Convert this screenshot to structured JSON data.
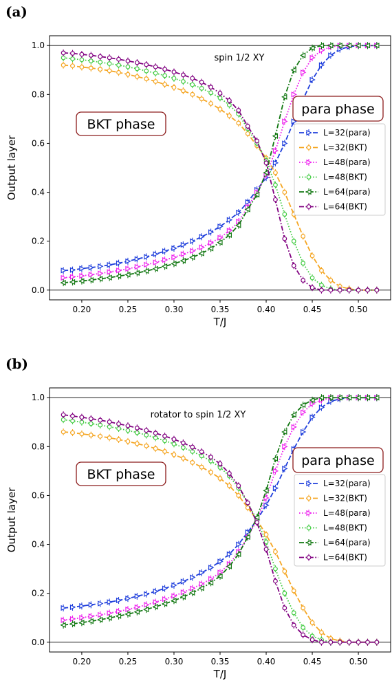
{
  "chart_data": [
    {
      "type": "line",
      "panel_label": "(a)",
      "annotation": "spin 1/2 XY",
      "phase_labels": {
        "left": "BKT phase",
        "right": "para phase"
      },
      "xlabel": "T/J",
      "ylabel": "Output layer",
      "xlim": [
        0.165,
        0.535
      ],
      "ylim": [
        -0.04,
        1.04
      ],
      "xticks": [
        0.2,
        0.25,
        0.3,
        0.35,
        0.4,
        0.45,
        0.5
      ],
      "yticks": [
        0.0,
        0.2,
        0.4,
        0.6,
        0.8,
        1.0
      ],
      "hlines": [
        0.0,
        1.0
      ],
      "legend_position": "right",
      "x": [
        0.18,
        0.19,
        0.2,
        0.21,
        0.22,
        0.23,
        0.24,
        0.25,
        0.26,
        0.27,
        0.28,
        0.29,
        0.3,
        0.31,
        0.32,
        0.33,
        0.34,
        0.35,
        0.36,
        0.37,
        0.38,
        0.39,
        0.4,
        0.41,
        0.42,
        0.43,
        0.44,
        0.45,
        0.46,
        0.47,
        0.48,
        0.49,
        0.5,
        0.51,
        0.52
      ],
      "series": [
        {
          "name": "L=32(para)",
          "color": "#1f3fdc",
          "dash": "dashed",
          "marker": "triangle-right",
          "values": [
            0.08,
            0.082,
            0.088,
            0.092,
            0.097,
            0.103,
            0.11,
            0.118,
            0.127,
            0.136,
            0.147,
            0.159,
            0.171,
            0.185,
            0.2,
            0.218,
            0.237,
            0.26,
            0.287,
            0.317,
            0.36,
            0.41,
            0.46,
            0.52,
            0.6,
            0.69,
            0.78,
            0.86,
            0.92,
            0.96,
            0.985,
            0.995,
            1.0,
            1.0,
            1.0
          ]
        },
        {
          "name": "L=32(BKT)",
          "color": "#f5a623",
          "dash": "dashed",
          "marker": "circle",
          "values": [
            0.92,
            0.917,
            0.912,
            0.908,
            0.903,
            0.897,
            0.89,
            0.882,
            0.873,
            0.864,
            0.853,
            0.841,
            0.829,
            0.815,
            0.8,
            0.782,
            0.763,
            0.74,
            0.713,
            0.683,
            0.64,
            0.59,
            0.54,
            0.48,
            0.4,
            0.31,
            0.22,
            0.14,
            0.08,
            0.04,
            0.015,
            0.005,
            0.0,
            0.0,
            0.0
          ]
        },
        {
          "name": "L=48(para)",
          "color": "#ee22ee",
          "dash": "dotted",
          "marker": "triangle-right",
          "values": [
            0.05,
            0.054,
            0.058,
            0.063,
            0.068,
            0.074,
            0.08,
            0.087,
            0.095,
            0.104,
            0.113,
            0.123,
            0.134,
            0.147,
            0.16,
            0.175,
            0.193,
            0.214,
            0.243,
            0.28,
            0.34,
            0.4,
            0.47,
            0.57,
            0.69,
            0.8,
            0.89,
            0.95,
            0.98,
            0.995,
            1.0,
            1.0,
            1.0,
            1.0,
            1.0
          ]
        },
        {
          "name": "L=48(BKT)",
          "color": "#44cc44",
          "dash": "dotted",
          "marker": "circle",
          "values": [
            0.95,
            0.946,
            0.942,
            0.937,
            0.932,
            0.926,
            0.92,
            0.913,
            0.905,
            0.896,
            0.887,
            0.877,
            0.866,
            0.853,
            0.84,
            0.825,
            0.807,
            0.786,
            0.757,
            0.72,
            0.66,
            0.6,
            0.53,
            0.43,
            0.31,
            0.2,
            0.11,
            0.05,
            0.02,
            0.005,
            0.0,
            0.0,
            0.0,
            0.0,
            0.0
          ]
        },
        {
          "name": "L=64(para)",
          "color": "#117711",
          "dash": "dashdot",
          "marker": "triangle-left",
          "values": [
            0.03,
            0.033,
            0.037,
            0.041,
            0.046,
            0.051,
            0.057,
            0.063,
            0.07,
            0.078,
            0.087,
            0.097,
            0.108,
            0.12,
            0.134,
            0.15,
            0.17,
            0.195,
            0.225,
            0.265,
            0.33,
            0.39,
            0.48,
            0.63,
            0.79,
            0.9,
            0.96,
            0.99,
            1.0,
            1.0,
            1.0,
            1.0,
            1.0,
            1.0,
            1.0
          ]
        },
        {
          "name": "L=64(BKT)",
          "color": "#800080",
          "dash": "dashdot",
          "marker": "circle",
          "values": [
            0.97,
            0.968,
            0.964,
            0.96,
            0.955,
            0.95,
            0.944,
            0.937,
            0.93,
            0.922,
            0.913,
            0.903,
            0.892,
            0.88,
            0.866,
            0.85,
            0.83,
            0.805,
            0.775,
            0.735,
            0.67,
            0.61,
            0.52,
            0.37,
            0.21,
            0.1,
            0.04,
            0.01,
            0.0,
            0.0,
            0.0,
            0.0,
            0.0,
            0.0,
            0.0
          ]
        }
      ]
    },
    {
      "type": "line",
      "panel_label": "(b)",
      "annotation": "rotator to spin 1/2 XY",
      "phase_labels": {
        "left": "BKT phase",
        "right": "para phase"
      },
      "xlabel": "T/J",
      "ylabel": "Output layer",
      "xlim": [
        0.165,
        0.535
      ],
      "ylim": [
        -0.04,
        1.04
      ],
      "xticks": [
        0.2,
        0.25,
        0.3,
        0.35,
        0.4,
        0.45,
        0.5
      ],
      "yticks": [
        0.0,
        0.2,
        0.4,
        0.6,
        0.8,
        1.0
      ],
      "hlines": [
        0.0,
        1.0
      ],
      "legend_position": "right",
      "x": [
        0.18,
        0.19,
        0.2,
        0.21,
        0.22,
        0.23,
        0.24,
        0.25,
        0.26,
        0.27,
        0.28,
        0.29,
        0.3,
        0.31,
        0.32,
        0.33,
        0.34,
        0.35,
        0.36,
        0.37,
        0.38,
        0.39,
        0.4,
        0.41,
        0.42,
        0.43,
        0.44,
        0.45,
        0.46,
        0.47,
        0.48,
        0.49,
        0.5,
        0.51,
        0.52
      ],
      "series": [
        {
          "name": "L=32(para)",
          "color": "#1f3fdc",
          "dash": "dashed",
          "marker": "triangle-right",
          "values": [
            0.14,
            0.143,
            0.148,
            0.153,
            0.158,
            0.164,
            0.171,
            0.179,
            0.188,
            0.197,
            0.208,
            0.22,
            0.233,
            0.248,
            0.265,
            0.284,
            0.305,
            0.33,
            0.36,
            0.4,
            0.45,
            0.5,
            0.56,
            0.63,
            0.71,
            0.79,
            0.86,
            0.92,
            0.96,
            0.985,
            0.995,
            1.0,
            1.0,
            1.0,
            1.0
          ]
        },
        {
          "name": "L=32(BKT)",
          "color": "#f5a623",
          "dash": "dashed",
          "marker": "circle",
          "values": [
            0.86,
            0.857,
            0.852,
            0.847,
            0.842,
            0.836,
            0.829,
            0.821,
            0.812,
            0.803,
            0.792,
            0.78,
            0.767,
            0.752,
            0.735,
            0.716,
            0.695,
            0.67,
            0.64,
            0.6,
            0.55,
            0.5,
            0.44,
            0.37,
            0.29,
            0.21,
            0.14,
            0.08,
            0.04,
            0.015,
            0.005,
            0.0,
            0.0,
            0.0,
            0.0
          ]
        },
        {
          "name": "L=48(para)",
          "color": "#ee22ee",
          "dash": "dotted",
          "marker": "triangle-right",
          "values": [
            0.09,
            0.095,
            0.1,
            0.106,
            0.112,
            0.119,
            0.126,
            0.134,
            0.143,
            0.153,
            0.164,
            0.176,
            0.189,
            0.204,
            0.22,
            0.238,
            0.259,
            0.285,
            0.32,
            0.37,
            0.43,
            0.5,
            0.59,
            0.7,
            0.8,
            0.88,
            0.94,
            0.975,
            0.99,
            1.0,
            1.0,
            1.0,
            1.0,
            1.0,
            1.0
          ]
        },
        {
          "name": "L=48(BKT)",
          "color": "#44cc44",
          "dash": "dotted",
          "marker": "circle",
          "values": [
            0.91,
            0.905,
            0.9,
            0.894,
            0.888,
            0.881,
            0.874,
            0.866,
            0.857,
            0.847,
            0.836,
            0.824,
            0.811,
            0.796,
            0.78,
            0.762,
            0.741,
            0.715,
            0.68,
            0.63,
            0.57,
            0.5,
            0.41,
            0.3,
            0.2,
            0.12,
            0.06,
            0.025,
            0.01,
            0.0,
            0.0,
            0.0,
            0.0,
            0.0,
            0.0
          ]
        },
        {
          "name": "L=64(para)",
          "color": "#117711",
          "dash": "dashdot",
          "marker": "triangle-left",
          "values": [
            0.07,
            0.075,
            0.08,
            0.086,
            0.092,
            0.099,
            0.107,
            0.115,
            0.124,
            0.134,
            0.145,
            0.157,
            0.17,
            0.185,
            0.202,
            0.221,
            0.243,
            0.27,
            0.31,
            0.36,
            0.43,
            0.51,
            0.62,
            0.75,
            0.86,
            0.93,
            0.97,
            0.99,
            1.0,
            1.0,
            1.0,
            1.0,
            1.0,
            1.0,
            1.0
          ]
        },
        {
          "name": "L=64(BKT)",
          "color": "#800080",
          "dash": "dashdot",
          "marker": "circle",
          "values": [
            0.93,
            0.925,
            0.92,
            0.914,
            0.908,
            0.901,
            0.893,
            0.885,
            0.876,
            0.866,
            0.855,
            0.843,
            0.83,
            0.815,
            0.798,
            0.779,
            0.757,
            0.73,
            0.69,
            0.64,
            0.57,
            0.49,
            0.38,
            0.25,
            0.14,
            0.07,
            0.03,
            0.01,
            0.0,
            0.0,
            0.0,
            0.0,
            0.0,
            0.0,
            0.0
          ]
        }
      ]
    }
  ]
}
